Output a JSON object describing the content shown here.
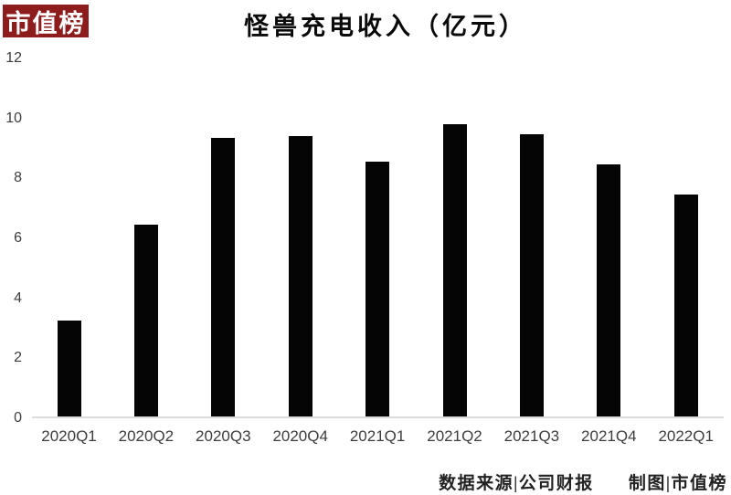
{
  "logo": {
    "text": "市值榜",
    "bg_color": "#8d1d1d",
    "text_color": "#ffffff"
  },
  "title": "怪兽充电收入（亿元）",
  "footer": {
    "source": "数据来源|公司财报",
    "credit": "制图|市值榜"
  },
  "chart_data": {
    "type": "bar",
    "title": "怪兽充电收入（亿元）",
    "categories": [
      "2020Q1",
      "2020Q2",
      "2020Q3",
      "2020Q4",
      "2021Q1",
      "2021Q2",
      "2021Q3",
      "2021Q4",
      "2022Q1"
    ],
    "values": [
      3.2,
      6.4,
      9.3,
      9.35,
      8.5,
      9.75,
      9.4,
      8.4,
      7.4
    ],
    "xlabel": "",
    "ylabel": "",
    "ylim": [
      0,
      12
    ],
    "yticks": [
      0,
      2,
      4,
      6,
      8,
      10,
      12
    ],
    "bar_color": "#050505",
    "axis_label_color": "#3d3d3d",
    "baseline_color": "#dcdcdc",
    "grid": false,
    "legend_position": "none"
  }
}
